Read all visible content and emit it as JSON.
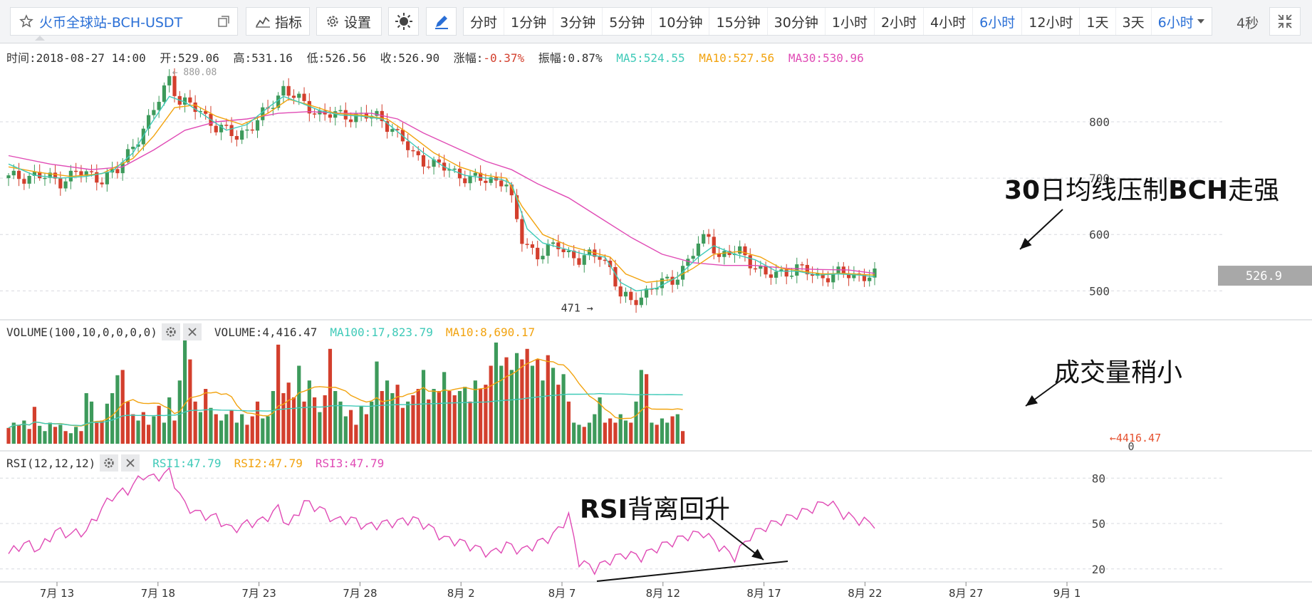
{
  "toolbar": {
    "symbol": "火币全球站-BCH-USDT",
    "indicators_label": "指标",
    "settings_label": "设置",
    "intervals": [
      "分时",
      "1分钟",
      "3分钟",
      "5分钟",
      "10分钟",
      "15分钟",
      "30分钟",
      "1小时",
      "2小时",
      "4小时",
      "6小时",
      "12小时",
      "1天",
      "3天"
    ],
    "active_interval": "6小时",
    "interval_select": "6小时",
    "refresh": "4秒",
    "accent": "#2a6fd6"
  },
  "info": {
    "time": "时间:2018-08-27 14:00",
    "open": "开:529.06",
    "high": "高:531.16",
    "low": "低:526.56",
    "close": "收:526.90",
    "change_label": "涨幅:",
    "change_value": "-0.37%",
    "amplitude": "振幅:0.87%",
    "ma5": "MA5:524.55",
    "ma10": "MA10:527.56",
    "ma30": "MA30:530.96"
  },
  "volume_header": {
    "title": "VOLUME(100,10,0,0,0,0)",
    "volume": "VOLUME:4,416.47",
    "ma100": "MA100:17,823.79",
    "ma10": "MA10:8,690.17"
  },
  "rsi_header": {
    "title": "RSI(12,12,12)",
    "rsi1": "RSI1:47.79",
    "rsi2": "RSI2:47.79",
    "rsi3": "RSI3:47.79"
  },
  "annotations": {
    "ma30_pressure": {
      "bold": "30",
      "text": "日均线压制",
      "bold2": "BCH",
      "text2": "走强"
    },
    "volume_small": "成交量稍小",
    "rsi_divergence": {
      "bold": "RSI",
      "text": "背离回升"
    }
  },
  "colors": {
    "up": "#3d9a5b",
    "down": "#d33f2d",
    "ma5": "#3fcab8",
    "ma10": "#f2a30f",
    "ma30": "#e04bb5",
    "rsi": "#e04bb5"
  },
  "chart_data": {
    "type": "candlestick",
    "x_ticks": [
      "7月 13",
      "7月 18",
      "7月 23",
      "7月 28",
      "8月 2",
      "8月 7",
      "8月 12",
      "8月 17",
      "8月 22",
      "8月 27",
      "9月 1"
    ],
    "price_axis": {
      "ticks": [
        500,
        600,
        700,
        800
      ],
      "range": [
        460,
        915
      ]
    },
    "last_price_label": "526.9",
    "low_marker": "471",
    "high_marker": "880.08",
    "price_path": [
      [
        0,
        700
      ],
      [
        5,
        705
      ],
      [
        10,
        695
      ],
      [
        13,
        710
      ],
      [
        18,
        700
      ],
      [
        21,
        712
      ],
      [
        24,
        760
      ],
      [
        27,
        800
      ],
      [
        31,
        880
      ],
      [
        33,
        835
      ],
      [
        37,
        820
      ],
      [
        40,
        790
      ],
      [
        44,
        775
      ],
      [
        48,
        800
      ],
      [
        51,
        835
      ],
      [
        53,
        860
      ],
      [
        57,
        830
      ],
      [
        60,
        815
      ],
      [
        64,
        810
      ],
      [
        67,
        812
      ],
      [
        71,
        808
      ],
      [
        74,
        790
      ],
      [
        78,
        740
      ],
      [
        82,
        725
      ],
      [
        86,
        710
      ],
      [
        89,
        700
      ],
      [
        92,
        695
      ],
      [
        95,
        698
      ],
      [
        96,
        690
      ],
      [
        99,
        590
      ],
      [
        102,
        565
      ],
      [
        106,
        580
      ],
      [
        110,
        555
      ],
      [
        114,
        565
      ],
      [
        116,
        540
      ],
      [
        118,
        490
      ],
      [
        120,
        480
      ],
      [
        124,
        505
      ],
      [
        128,
        520
      ],
      [
        130,
        540
      ],
      [
        133,
        580
      ],
      [
        135,
        600
      ],
      [
        137,
        560
      ],
      [
        141,
        570
      ],
      [
        144,
        545
      ],
      [
        146,
        525
      ],
      [
        150,
        535
      ],
      [
        152,
        540
      ],
      [
        156,
        525
      ],
      [
        160,
        530
      ],
      [
        164,
        528
      ],
      [
        167,
        527
      ]
    ],
    "ma5_path": [
      [
        0,
        725
      ],
      [
        5,
        705
      ],
      [
        10,
        700
      ],
      [
        15,
        703
      ],
      [
        20,
        712
      ],
      [
        24,
        745
      ],
      [
        27,
        790
      ],
      [
        31,
        845
      ],
      [
        34,
        835
      ],
      [
        38,
        810
      ],
      [
        42,
        785
      ],
      [
        46,
        795
      ],
      [
        50,
        825
      ],
      [
        53,
        845
      ],
      [
        56,
        835
      ],
      [
        60,
        820
      ],
      [
        64,
        812
      ],
      [
        68,
        810
      ],
      [
        72,
        805
      ],
      [
        76,
        775
      ],
      [
        80,
        745
      ],
      [
        84,
        720
      ],
      [
        88,
        705
      ],
      [
        92,
        700
      ],
      [
        95,
        698
      ],
      [
        97,
        690
      ],
      [
        100,
        610
      ],
      [
        103,
        585
      ],
      [
        107,
        575
      ],
      [
        111,
        565
      ],
      [
        115,
        560
      ],
      [
        118,
        515
      ],
      [
        121,
        500
      ],
      [
        125,
        505
      ],
      [
        129,
        525
      ],
      [
        133,
        560
      ],
      [
        136,
        580
      ],
      [
        140,
        565
      ],
      [
        144,
        555
      ],
      [
        148,
        535
      ],
      [
        152,
        535
      ],
      [
        156,
        528
      ],
      [
        160,
        530
      ],
      [
        164,
        528
      ],
      [
        167,
        525
      ]
    ],
    "ma10_path": [
      [
        0,
        720
      ],
      [
        6,
        710
      ],
      [
        12,
        703
      ],
      [
        18,
        708
      ],
      [
        24,
        735
      ],
      [
        28,
        775
      ],
      [
        32,
        825
      ],
      [
        36,
        830
      ],
      [
        40,
        810
      ],
      [
        45,
        795
      ],
      [
        50,
        815
      ],
      [
        54,
        840
      ],
      [
        58,
        830
      ],
      [
        63,
        815
      ],
      [
        68,
        812
      ],
      [
        73,
        805
      ],
      [
        77,
        780
      ],
      [
        82,
        745
      ],
      [
        87,
        720
      ],
      [
        92,
        705
      ],
      [
        96,
        700
      ],
      [
        99,
        650
      ],
      [
        103,
        600
      ],
      [
        108,
        580
      ],
      [
        112,
        570
      ],
      [
        116,
        560
      ],
      [
        119,
        530
      ],
      [
        123,
        515
      ],
      [
        128,
        520
      ],
      [
        132,
        540
      ],
      [
        136,
        565
      ],
      [
        141,
        570
      ],
      [
        145,
        560
      ],
      [
        149,
        540
      ],
      [
        153,
        535
      ],
      [
        157,
        530
      ],
      [
        161,
        531
      ],
      [
        167,
        528
      ]
    ],
    "ma30_path": [
      [
        0,
        740
      ],
      [
        8,
        725
      ],
      [
        16,
        715
      ],
      [
        22,
        720
      ],
      [
        28,
        750
      ],
      [
        34,
        785
      ],
      [
        40,
        800
      ],
      [
        46,
        805
      ],
      [
        52,
        815
      ],
      [
        58,
        818
      ],
      [
        64,
        815
      ],
      [
        70,
        815
      ],
      [
        75,
        805
      ],
      [
        80,
        780
      ],
      [
        86,
        755
      ],
      [
        92,
        730
      ],
      [
        97,
        715
      ],
      [
        102,
        690
      ],
      [
        108,
        665
      ],
      [
        114,
        630
      ],
      [
        120,
        595
      ],
      [
        126,
        565
      ],
      [
        132,
        550
      ],
      [
        138,
        545
      ],
      [
        144,
        545
      ],
      [
        150,
        540
      ],
      [
        156,
        538
      ],
      [
        162,
        537
      ],
      [
        167,
        531
      ]
    ],
    "volume_axis": {
      "ticks": [
        0
      ],
      "last_label": "←4416.47"
    },
    "volume_bars": [
      [
        15,
        "d"
      ],
      [
        20,
        "u"
      ],
      [
        18,
        "d"
      ],
      [
        22,
        "u"
      ],
      [
        14,
        "d"
      ],
      [
        35,
        "d"
      ],
      [
        17,
        "u"
      ],
      [
        12,
        "u"
      ],
      [
        20,
        "u"
      ],
      [
        16,
        "d"
      ],
      [
        18,
        "u"
      ],
      [
        12,
        "d"
      ],
      [
        10,
        "u"
      ],
      [
        16,
        "u"
      ],
      [
        12,
        "d"
      ],
      [
        48,
        "u"
      ],
      [
        40,
        "u"
      ],
      [
        20,
        "d"
      ],
      [
        22,
        "d"
      ],
      [
        38,
        "u"
      ],
      [
        48,
        "u"
      ],
      [
        65,
        "u"
      ],
      [
        70,
        "d"
      ],
      [
        40,
        "d"
      ],
      [
        28,
        "d"
      ],
      [
        22,
        "u"
      ],
      [
        30,
        "d"
      ],
      [
        18,
        "d"
      ],
      [
        26,
        "u"
      ],
      [
        36,
        "d"
      ],
      [
        20,
        "u"
      ],
      [
        44,
        "u"
      ],
      [
        22,
        "d"
      ],
      [
        60,
        "u"
      ],
      [
        100,
        "u"
      ],
      [
        80,
        "d"
      ],
      [
        40,
        "d"
      ],
      [
        30,
        "u"
      ],
      [
        52,
        "d"
      ],
      [
        34,
        "u"
      ],
      [
        28,
        "d"
      ],
      [
        22,
        "u"
      ],
      [
        28,
        "u"
      ],
      [
        32,
        "d"
      ],
      [
        20,
        "u"
      ],
      [
        28,
        "u"
      ],
      [
        18,
        "d"
      ],
      [
        26,
        "d"
      ],
      [
        40,
        "d"
      ],
      [
        24,
        "u"
      ],
      [
        26,
        "u"
      ],
      [
        50,
        "u"
      ],
      [
        94,
        "d"
      ],
      [
        48,
        "d"
      ],
      [
        58,
        "d"
      ],
      [
        44,
        "d"
      ],
      [
        74,
        "u"
      ],
      [
        40,
        "d"
      ],
      [
        60,
        "u"
      ],
      [
        44,
        "d"
      ],
      [
        30,
        "u"
      ],
      [
        46,
        "d"
      ],
      [
        90,
        "d"
      ],
      [
        50,
        "u"
      ],
      [
        40,
        "u"
      ],
      [
        26,
        "u"
      ],
      [
        32,
        "d"
      ],
      [
        18,
        "d"
      ],
      [
        36,
        "u"
      ],
      [
        28,
        "d"
      ],
      [
        40,
        "u"
      ],
      [
        78,
        "u"
      ],
      [
        50,
        "d"
      ],
      [
        60,
        "u"
      ],
      [
        48,
        "u"
      ],
      [
        56,
        "d"
      ],
      [
        34,
        "d"
      ],
      [
        40,
        "u"
      ],
      [
        46,
        "d"
      ],
      [
        52,
        "d"
      ],
      [
        70,
        "u"
      ],
      [
        42,
        "d"
      ],
      [
        52,
        "u"
      ],
      [
        50,
        "d"
      ],
      [
        68,
        "u"
      ],
      [
        50,
        "d"
      ],
      [
        46,
        "d"
      ],
      [
        50,
        "u"
      ],
      [
        54,
        "u"
      ],
      [
        40,
        "d"
      ],
      [
        60,
        "u"
      ],
      [
        52,
        "d"
      ],
      [
        56,
        "d"
      ],
      [
        74,
        "d"
      ],
      [
        96,
        "u"
      ],
      [
        74,
        "u"
      ],
      [
        82,
        "d"
      ],
      [
        70,
        "u"
      ],
      [
        86,
        "u"
      ],
      [
        80,
        "d"
      ],
      [
        90,
        "d"
      ],
      [
        74,
        "u"
      ],
      [
        80,
        "d"
      ],
      [
        60,
        "u"
      ],
      [
        84,
        "d"
      ],
      [
        72,
        "u"
      ],
      [
        56,
        "d"
      ],
      [
        66,
        "u"
      ],
      [
        40,
        "d"
      ],
      [
        20,
        "u"
      ],
      [
        18,
        "u"
      ],
      [
        16,
        "d"
      ],
      [
        20,
        "u"
      ],
      [
        28,
        "u"
      ],
      [
        44,
        "u"
      ],
      [
        20,
        "d"
      ],
      [
        24,
        "d"
      ],
      [
        20,
        "d"
      ],
      [
        28,
        "u"
      ],
      [
        22,
        "u"
      ],
      [
        20,
        "d"
      ],
      [
        40,
        "u"
      ],
      [
        70,
        "u"
      ],
      [
        66,
        "d"
      ],
      [
        20,
        "u"
      ],
      [
        18,
        "d"
      ],
      [
        24,
        "u"
      ],
      [
        20,
        "u"
      ],
      [
        26,
        "d"
      ],
      [
        28,
        "u"
      ],
      [
        12,
        "d"
      ]
    ],
    "rsi_axis": {
      "ticks": [
        20,
        50,
        80
      ],
      "range": [
        10,
        90
      ]
    },
    "rsi_path": [
      [
        0,
        30
      ],
      [
        3,
        37
      ],
      [
        6,
        33
      ],
      [
        9,
        45
      ],
      [
        12,
        43
      ],
      [
        15,
        45
      ],
      [
        18,
        60
      ],
      [
        20,
        68
      ],
      [
        23,
        72
      ],
      [
        26,
        82
      ],
      [
        28,
        80
      ],
      [
        31,
        84
      ],
      [
        34,
        62
      ],
      [
        37,
        56
      ],
      [
        40,
        54
      ],
      [
        43,
        46
      ],
      [
        46,
        50
      ],
      [
        49,
        52
      ],
      [
        52,
        60
      ],
      [
        54,
        48
      ],
      [
        57,
        64
      ],
      [
        60,
        60
      ],
      [
        63,
        52
      ],
      [
        66,
        53
      ],
      [
        69,
        48
      ],
      [
        72,
        50
      ],
      [
        75,
        51
      ],
      [
        78,
        53
      ],
      [
        81,
        48
      ],
      [
        84,
        40
      ],
      [
        87,
        38
      ],
      [
        90,
        34
      ],
      [
        93,
        30
      ],
      [
        96,
        36
      ],
      [
        99,
        32
      ],
      [
        102,
        37
      ],
      [
        105,
        42
      ],
      [
        108,
        55
      ],
      [
        110,
        25
      ],
      [
        113,
        20
      ],
      [
        116,
        26
      ],
      [
        119,
        30
      ],
      [
        122,
        28
      ],
      [
        125,
        34
      ],
      [
        128,
        38
      ],
      [
        131,
        42
      ],
      [
        134,
        44
      ],
      [
        137,
        35
      ],
      [
        140,
        28
      ],
      [
        143,
        42
      ],
      [
        146,
        48
      ],
      [
        149,
        52
      ],
      [
        152,
        56
      ],
      [
        155,
        60
      ],
      [
        158,
        65
      ],
      [
        161,
        56
      ],
      [
        164,
        52
      ],
      [
        167,
        50
      ]
    ]
  }
}
